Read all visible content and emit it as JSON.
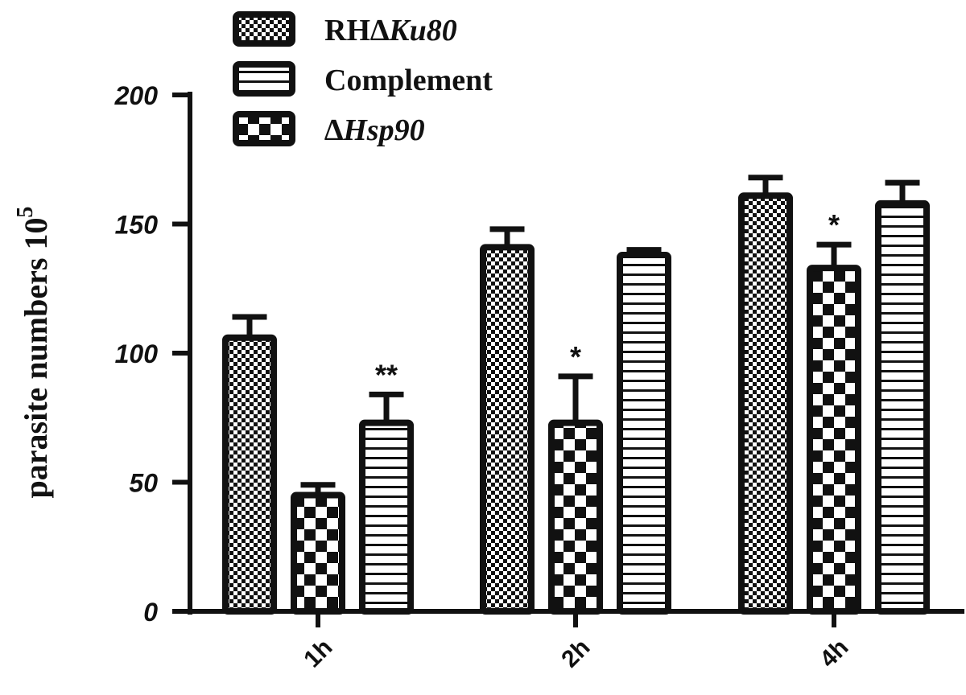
{
  "chart_data": {
    "type": "bar",
    "title": "",
    "xlabel": "",
    "ylabel": "parasite numbers 10",
    "ylabel_superscript": "5",
    "categories": [
      "1h",
      "2h",
      "4h"
    ],
    "yticks": [
      "0",
      "50",
      "100",
      "150",
      "200"
    ],
    "ylim": [
      0,
      200
    ],
    "grid": false,
    "legend_position": "top",
    "series": [
      {
        "name": "RH∆Ku80",
        "pattern": "fine-checker",
        "values": [
          106,
          141,
          161
        ],
        "errors": [
          8,
          7,
          7
        ],
        "significance": [
          "",
          "",
          ""
        ]
      },
      {
        "name": "∆Hsp90",
        "pattern": "coarse-checker",
        "values": [
          45,
          73,
          133
        ],
        "errors": [
          4,
          18,
          9
        ],
        "significance": [
          "",
          "*",
          "*"
        ]
      },
      {
        "name": "Complement",
        "pattern": "horizontal-stripes",
        "values": [
          73,
          138,
          158
        ],
        "errors": [
          11,
          2,
          8
        ],
        "significance": [
          "**",
          "",
          ""
        ]
      }
    ],
    "legend_order": [
      {
        "label_prefix": "RH",
        "label_italic": "∆Ku80",
        "pattern": "fine-checker"
      },
      {
        "label_prefix": "Complement",
        "label_italic": "",
        "pattern": "horizontal-stripes"
      },
      {
        "label_prefix": "",
        "label_italic": "∆Hsp90",
        "pattern": "coarse-checker"
      }
    ]
  }
}
